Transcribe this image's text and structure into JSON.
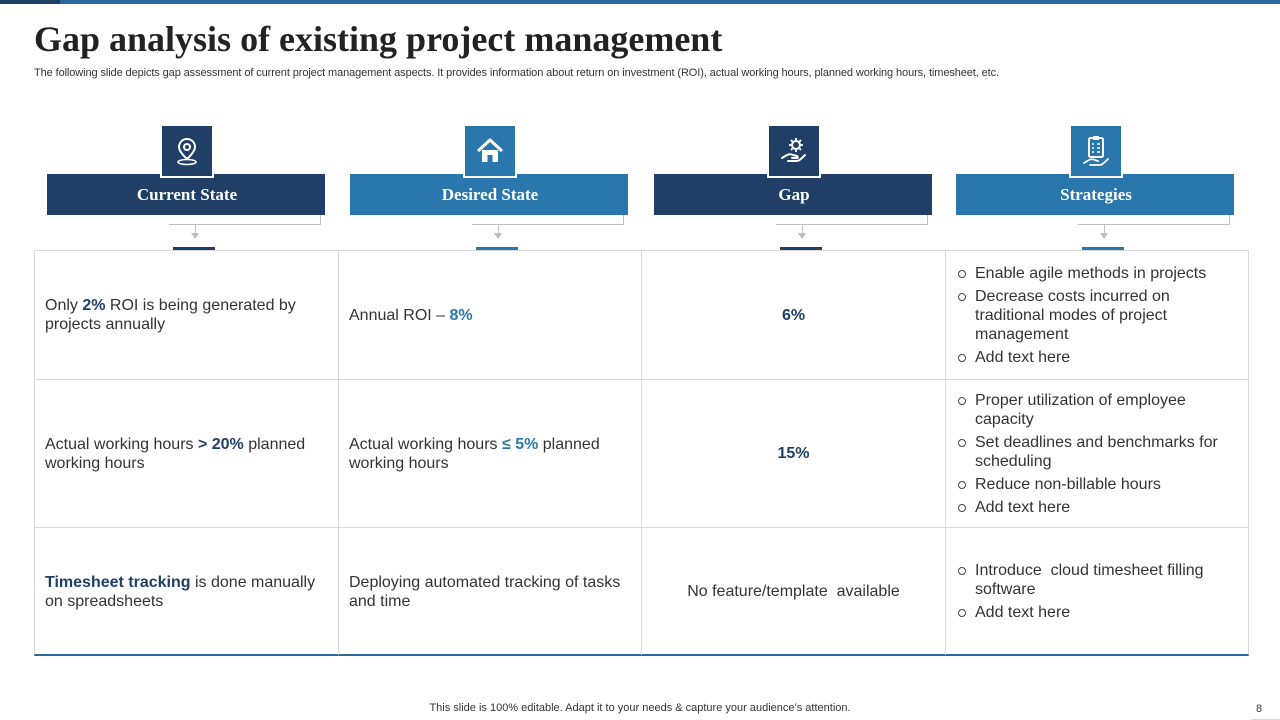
{
  "header": {
    "title": "Gap analysis of existing project management",
    "subtitle": "The following slide depicts gap assessment of current project management aspects. It provides information about return on investment (ROI), actual working hours, planned working hours, timesheet, etc."
  },
  "columns": [
    {
      "label": "Current State",
      "icon": "location-pin-icon",
      "color": "#1f3f66"
    },
    {
      "label": "Desired State",
      "icon": "home-icon",
      "color": "#2a77ad"
    },
    {
      "label": "Gap",
      "icon": "hand-gear-icon",
      "color": "#1f3f66"
    },
    {
      "label": "Strategies",
      "icon": "clipboard-hand-icon",
      "color": "#2a77ad"
    }
  ],
  "rows": [
    {
      "current": {
        "pre": "Only ",
        "highlight": "2%",
        "post": " ROI is being generated by projects annually"
      },
      "desired": {
        "pre": "Annual ROI – ",
        "highlight": "8%",
        "post": ""
      },
      "gap": "6%",
      "strategies": [
        "Enable agile methods in projects",
        "Decrease costs incurred on traditional modes of project management",
        "Add text here"
      ]
    },
    {
      "current": {
        "pre": "Actual working hours ",
        "highlight": "> 20%",
        "post": " planned working hours"
      },
      "desired": {
        "pre": "Actual working hours ",
        "highlight": "≤ 5%",
        "post": " planned working hours"
      },
      "gap": "15%",
      "strategies": [
        "Proper utilization of employee capacity",
        "Set deadlines and benchmarks for scheduling",
        "Reduce non-billable hours",
        "Add text here"
      ]
    },
    {
      "current": {
        "pre": "",
        "highlight": "Timesheet tracking",
        "post": " is done manually on spreadsheets"
      },
      "desired": {
        "pre": "Deploying automated tracking of tasks and time",
        "highlight": "",
        "post": ""
      },
      "gap": "No feature/template  available",
      "strategies": [
        "Introduce  cloud timesheet filling software",
        "Add text here"
      ]
    }
  ],
  "footer": {
    "note": "This slide is 100% editable. Adapt it to your needs & capture your audience’s attention.",
    "page": "8"
  }
}
